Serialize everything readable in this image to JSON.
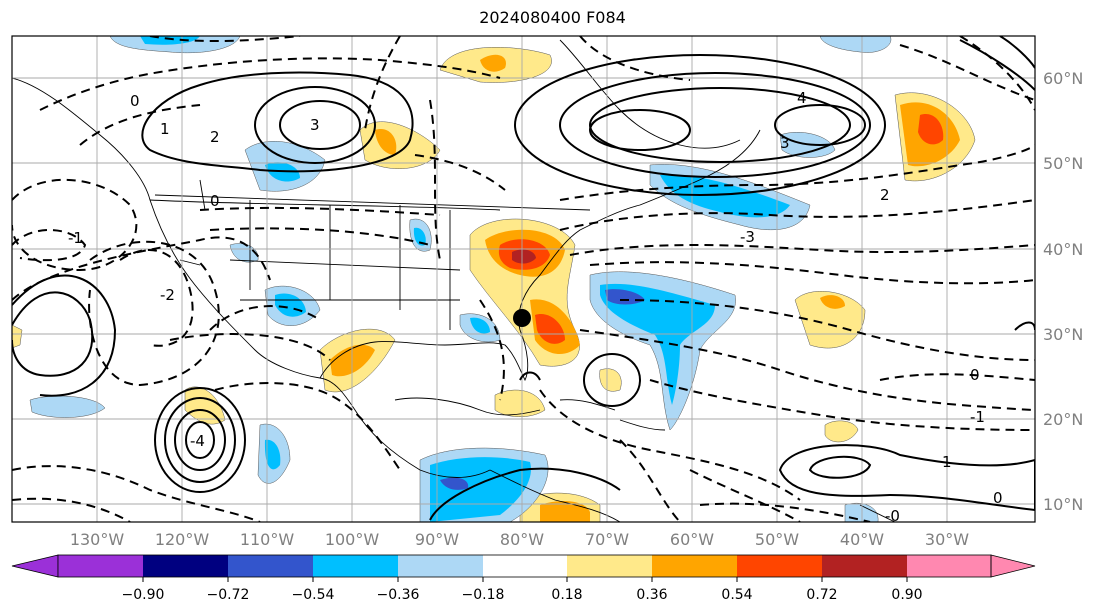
{
  "title": "2024080400 F084",
  "map": {
    "lon_labels": [
      "130°W",
      "120°W",
      "110°W",
      "100°W",
      "90°W",
      "80°W",
      "70°W",
      "60°W",
      "50°W",
      "40°W",
      "30°W"
    ],
    "lat_labels": [
      "60°N",
      "50°N",
      "40°N",
      "30°N",
      "20°N",
      "10°N"
    ],
    "contour_labels": [
      "0",
      "1",
      "2",
      "3",
      "0",
      "-1",
      "-2",
      "-3",
      "4",
      "-4",
      "2",
      "-0",
      "0",
      "1",
      "-1",
      "0",
      "3"
    ],
    "marker": "storm-location-dot"
  },
  "colorbar": {
    "ticks": [
      "−0.90",
      "−0.72",
      "−0.54",
      "−0.36",
      "−0.18",
      "0.18",
      "0.36",
      "0.54",
      "0.72",
      "0.90"
    ],
    "colors": [
      "#9b30d8",
      "#000080",
      "#3355cc",
      "#00bfff",
      "#add8f5",
      "#ffffff",
      "#ffe98a",
      "#ffa500",
      "#ff4500",
      "#b22222",
      "#ff88b0"
    ]
  }
}
